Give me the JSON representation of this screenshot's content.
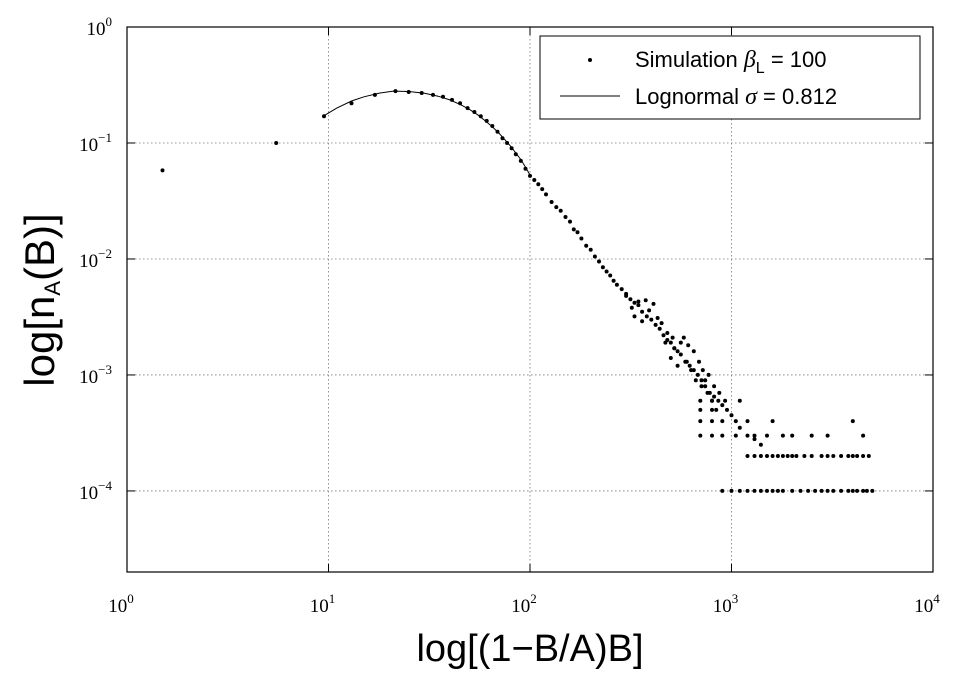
{
  "chart_data": {
    "type": "scatter",
    "xlabel": "log[(1−B/A)B]",
    "ylabel": {
      "base": "log[n",
      "sub": "A",
      "end": "(B)]"
    },
    "xscale": "log",
    "yscale": "log",
    "xlim": [
      1,
      10000
    ],
    "ylim": [
      2e-05,
      1
    ],
    "grid": true,
    "legend_position": "top-right",
    "x_ticks": [
      {
        "base": "10",
        "exp": "0",
        "value": 1
      },
      {
        "base": "10",
        "exp": "1",
        "value": 10
      },
      {
        "base": "10",
        "exp": "2",
        "value": 100
      },
      {
        "base": "10",
        "exp": "3",
        "value": 1000
      },
      {
        "base": "10",
        "exp": "4",
        "value": 10000
      }
    ],
    "y_ticks": [
      {
        "base": "10",
        "exp": "0",
        "value": 1
      },
      {
        "base": "10",
        "exp": "−1",
        "value": 0.1
      },
      {
        "base": "10",
        "exp": "−2",
        "value": 0.01
      },
      {
        "base": "10",
        "exp": "−3",
        "value": 0.001
      },
      {
        "base": "10",
        "exp": "−4",
        "value": 0.0001
      }
    ],
    "legend": [
      {
        "label_pre": "Simulation ",
        "symbol": "β",
        "sub": "L",
        "label_post": " = 100",
        "marker": "dot"
      },
      {
        "label_pre": "Lognormal ",
        "symbol": "σ",
        "sub": "",
        "label_post": " = 0.812",
        "marker": "line"
      }
    ],
    "series": [
      {
        "kind": "points",
        "points": [
          [
            1.5,
            0.058
          ],
          [
            5.5,
            0.1
          ],
          [
            9.5,
            0.17
          ],
          [
            13,
            0.22
          ],
          [
            17,
            0.26
          ],
          [
            21.5,
            0.28
          ],
          [
            25,
            0.275
          ],
          [
            29,
            0.27
          ],
          [
            33,
            0.26
          ],
          [
            37,
            0.25
          ],
          [
            41,
            0.235
          ],
          [
            45,
            0.22
          ],
          [
            49,
            0.2
          ],
          [
            53,
            0.185
          ],
          [
            57,
            0.17
          ],
          [
            61,
            0.155
          ],
          [
            65,
            0.14
          ],
          [
            69,
            0.125
          ],
          [
            73,
            0.11
          ],
          [
            77,
            0.1
          ],
          [
            81,
            0.09
          ],
          [
            85,
            0.08
          ],
          [
            90,
            0.07
          ],
          [
            95,
            0.06
          ],
          [
            100,
            0.052
          ],
          [
            105,
            0.048
          ],
          [
            110,
            0.044
          ],
          [
            115,
            0.04
          ],
          [
            120,
            0.036
          ],
          [
            128,
            0.031
          ],
          [
            135,
            0.028
          ],
          [
            142,
            0.026
          ],
          [
            150,
            0.023
          ],
          [
            158,
            0.021
          ],
          [
            165,
            0.018
          ],
          [
            172,
            0.017
          ],
          [
            180,
            0.015
          ],
          [
            190,
            0.013
          ],
          [
            200,
            0.012
          ],
          [
            210,
            0.0105
          ],
          [
            220,
            0.0095
          ],
          [
            230,
            0.0085
          ],
          [
            240,
            0.0078
          ],
          [
            250,
            0.0072
          ],
          [
            260,
            0.0065
          ],
          [
            270,
            0.006
          ],
          [
            285,
            0.0055
          ],
          [
            300,
            0.005
          ],
          [
            315,
            0.0045
          ],
          [
            330,
            0.0042
          ],
          [
            345,
            0.004
          ],
          [
            360,
            0.0035
          ],
          [
            380,
            0.0032
          ],
          [
            400,
            0.003
          ],
          [
            420,
            0.0027
          ],
          [
            440,
            0.0025
          ],
          [
            460,
            0.0022
          ],
          [
            480,
            0.002
          ],
          [
            500,
            0.0019
          ],
          [
            520,
            0.0017
          ],
          [
            540,
            0.0016
          ],
          [
            560,
            0.0015
          ],
          [
            590,
            0.0013
          ],
          [
            620,
            0.0012
          ],
          [
            650,
            0.0011
          ],
          [
            680,
            0.001
          ],
          [
            710,
            0.0009
          ],
          [
            740,
            0.0008
          ],
          [
            780,
            0.0007
          ],
          [
            820,
            0.00065
          ],
          [
            860,
            0.0006
          ],
          [
            900,
            0.00055
          ],
          [
            950,
            0.0005
          ],
          [
            1000,
            0.00045
          ],
          [
            1050,
            0.0004
          ],
          [
            1100,
            0.00035
          ],
          [
            1200,
            0.0003
          ],
          [
            1300,
            0.00028
          ],
          [
            1400,
            0.00025
          ],
          [
            1600,
            0.0002
          ],
          [
            1800,
            0.0002
          ],
          [
            2000,
            0.0002
          ],
          [
            2500,
            0.0002
          ],
          [
            3000,
            0.0002
          ],
          [
            3500,
            0.0002
          ],
          [
            4000,
            0.0002
          ],
          [
            4500,
            0.0002
          ],
          [
            900,
            0.0001
          ],
          [
            1000,
            0.0001
          ],
          [
            1200,
            0.0001
          ],
          [
            1500,
            0.0001
          ],
          [
            1800,
            0.0001
          ],
          [
            2200,
            0.0001
          ],
          [
            2600,
            0.0001
          ],
          [
            3000,
            0.0001
          ],
          [
            3500,
            0.0001
          ],
          [
            4000,
            0.0001
          ],
          [
            4500,
            0.0001
          ],
          [
            5000,
            0.0001
          ],
          [
            300,
            0.0048
          ],
          [
            320,
            0.0038
          ],
          [
            330,
            0.0032
          ],
          [
            345,
            0.0043
          ],
          [
            360,
            0.0029
          ],
          [
            375,
            0.0044
          ],
          [
            390,
            0.0036
          ],
          [
            410,
            0.0041
          ],
          [
            430,
            0.0031
          ],
          [
            450,
            0.0028
          ],
          [
            470,
            0.0019
          ],
          [
            480,
            0.0023
          ],
          [
            500,
            0.0014
          ],
          [
            510,
            0.0021
          ],
          [
            520,
            0.0017
          ],
          [
            540,
            0.0012
          ],
          [
            560,
            0.0019
          ],
          [
            580,
            0.0021
          ],
          [
            600,
            0.0013
          ],
          [
            610,
            0.0018
          ],
          [
            630,
            0.0011
          ],
          [
            650,
            0.0016
          ],
          [
            665,
            0.0009
          ],
          [
            690,
            0.0013
          ],
          [
            710,
            0.0008
          ],
          [
            720,
            0.0011
          ],
          [
            740,
            0.0009
          ],
          [
            760,
            0.0007
          ],
          [
            770,
            0.001
          ],
          [
            800,
            0.0006
          ],
          [
            820,
            0.0008
          ],
          [
            840,
            0.0005
          ],
          [
            870,
            0.0007
          ],
          [
            900,
            0.0004
          ],
          [
            930,
            0.0006
          ],
          [
            700,
            0.0006
          ],
          [
            700,
            0.0005
          ],
          [
            700,
            0.0004
          ],
          [
            700,
            0.0003
          ],
          [
            800,
            0.0006
          ],
          [
            800,
            0.0005
          ],
          [
            800,
            0.0004
          ],
          [
            800,
            0.0003
          ],
          [
            900,
            0.0003
          ],
          [
            1050,
            0.0003
          ],
          [
            1100,
            0.0006
          ],
          [
            1200,
            0.0004
          ],
          [
            1300,
            0.0003
          ],
          [
            1500,
            0.0003
          ],
          [
            1600,
            0.0004
          ],
          [
            1800,
            0.0003
          ],
          [
            2000,
            0.0003
          ],
          [
            2500,
            0.0003
          ],
          [
            3000,
            0.0003
          ],
          [
            4000,
            0.0004
          ],
          [
            4500,
            0.0003
          ],
          [
            1200,
            0.0002
          ],
          [
            1300,
            0.0002
          ],
          [
            1400,
            0.0002
          ],
          [
            1500,
            0.0002
          ],
          [
            1700,
            0.0002
          ],
          [
            1900,
            0.0002
          ],
          [
            2100,
            0.0002
          ],
          [
            2300,
            0.0002
          ],
          [
            2800,
            0.0002
          ],
          [
            3200,
            0.0002
          ],
          [
            3800,
            0.0002
          ],
          [
            4200,
            0.0002
          ],
          [
            4800,
            0.0002
          ],
          [
            1100,
            0.0001
          ],
          [
            1300,
            0.0001
          ],
          [
            1400,
            0.0001
          ],
          [
            1600,
            0.0001
          ],
          [
            1700,
            0.0001
          ],
          [
            2000,
            0.0001
          ],
          [
            2400,
            0.0001
          ],
          [
            2800,
            0.0001
          ],
          [
            3200,
            0.0001
          ],
          [
            3800,
            0.0001
          ],
          [
            4200,
            0.0001
          ],
          [
            4700,
            0.0001
          ]
        ]
      },
      {
        "kind": "line",
        "points": [
          [
            9.5,
            0.172
          ],
          [
            11,
            0.2
          ],
          [
            13,
            0.23
          ],
          [
            15,
            0.25
          ],
          [
            18,
            0.27
          ],
          [
            21,
            0.28
          ],
          [
            25,
            0.278
          ],
          [
            30,
            0.268
          ],
          [
            35,
            0.253
          ],
          [
            40,
            0.235
          ],
          [
            45,
            0.215
          ],
          [
            50,
            0.195
          ],
          [
            55,
            0.175
          ],
          [
            60,
            0.155
          ],
          [
            65,
            0.138
          ],
          [
            70,
            0.122
          ],
          [
            75,
            0.107
          ],
          [
            80,
            0.094
          ],
          [
            85,
            0.082
          ],
          [
            90,
            0.072
          ],
          [
            95,
            0.062
          ],
          [
            100,
            0.053
          ]
        ]
      }
    ]
  }
}
